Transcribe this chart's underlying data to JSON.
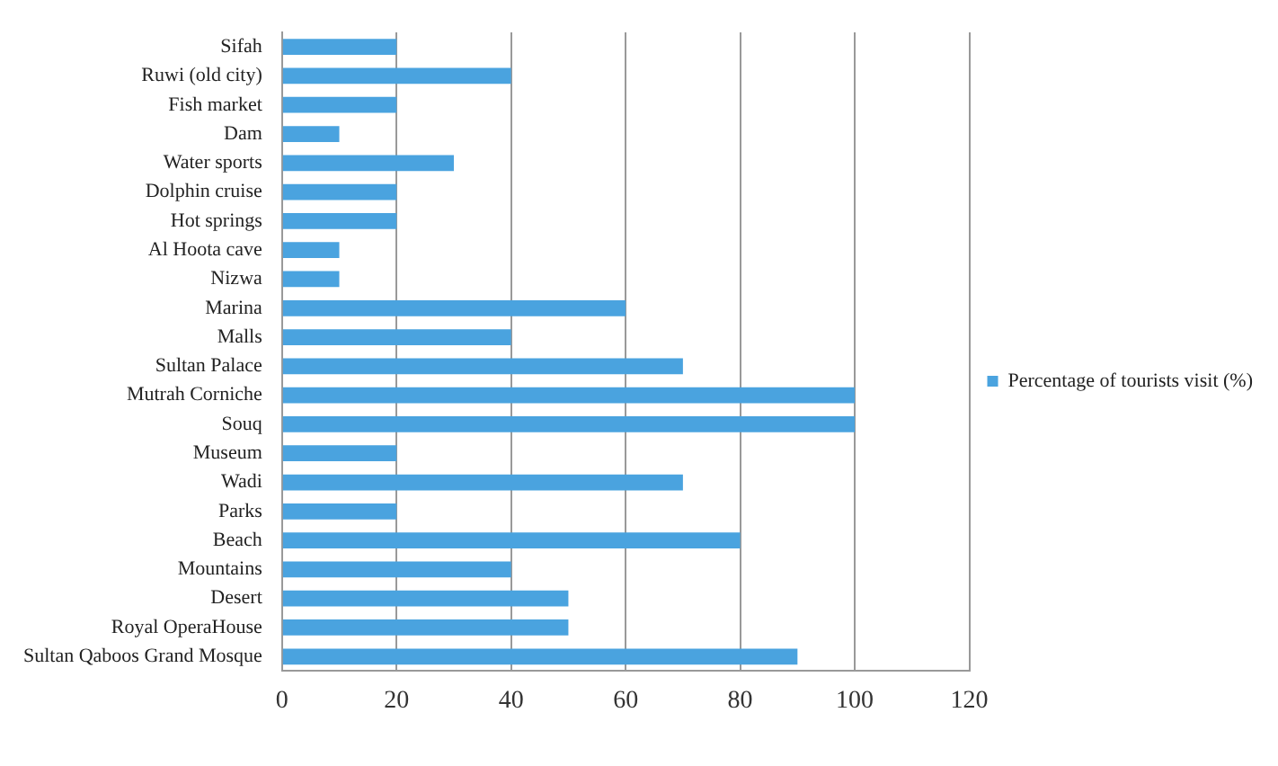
{
  "chart_data": {
    "type": "bar",
    "orientation": "horizontal",
    "categories": [
      "Sifah",
      "Ruwi (old city)",
      "Fish market",
      "Dam",
      "Water sports",
      "Dolphin cruise",
      "Hot springs",
      "Al Hoota cave",
      "Nizwa",
      "Marina",
      "Malls",
      "Sultan Palace",
      "Mutrah Corniche",
      "Souq",
      "Museum",
      "Wadi",
      "Parks",
      "Beach",
      "Mountains",
      "Desert",
      "Royal OperaHouse",
      "Sultan Qaboos Grand Mosque"
    ],
    "series": [
      {
        "name": "Percentage of tourists visit (%)",
        "color": "#4aa3df",
        "values": [
          20,
          40,
          20,
          10,
          30,
          20,
          20,
          10,
          10,
          60,
          40,
          70,
          100,
          100,
          20,
          70,
          20,
          80,
          40,
          50,
          50,
          90
        ]
      }
    ],
    "xlim": [
      0,
      120
    ],
    "xticks": [
      0,
      20,
      40,
      60,
      80,
      100,
      120
    ],
    "grid": "x",
    "legend": "right"
  }
}
